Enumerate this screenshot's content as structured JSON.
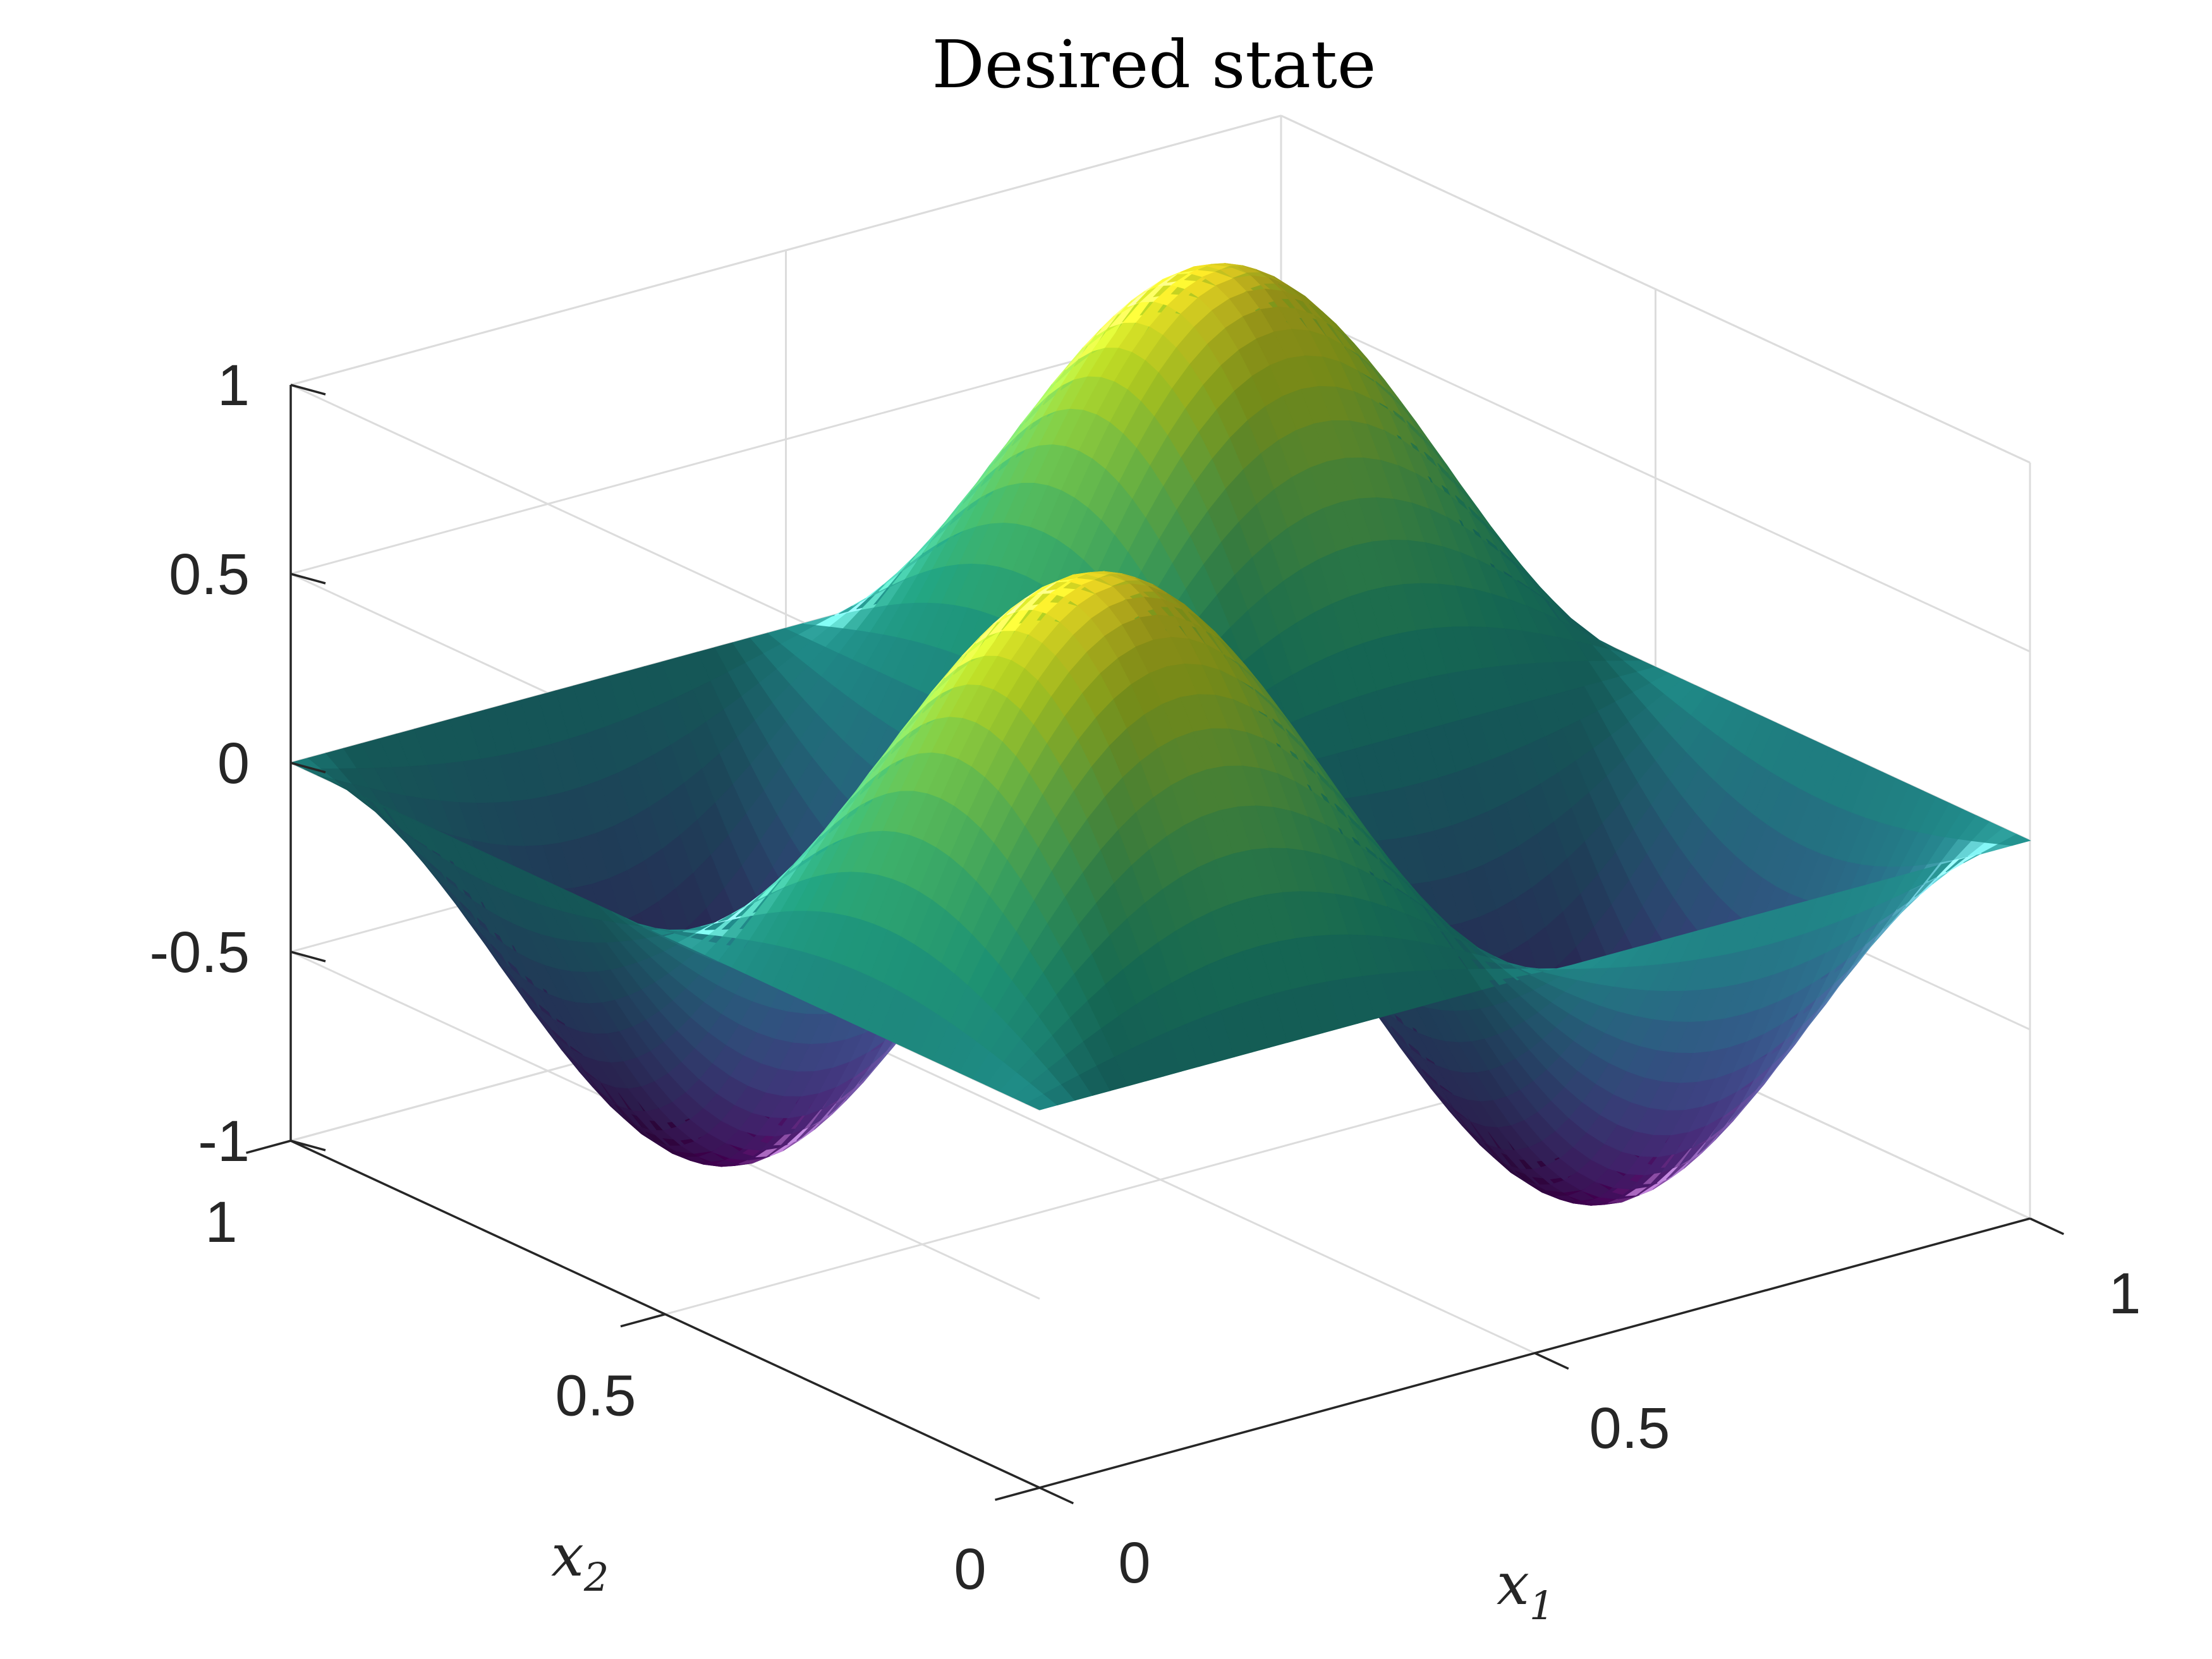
{
  "chart_data": {
    "type": "surface",
    "title": "Desired state",
    "xlabel": "x",
    "xlabel_sub": "1",
    "ylabel": "x",
    "ylabel_sub": "2",
    "zlabel": "",
    "xlim": [
      0,
      1
    ],
    "ylim": [
      0,
      1
    ],
    "zlim": [
      -1,
      1
    ],
    "x_ticks": [
      "0",
      "0.5",
      "1"
    ],
    "y_ticks": [
      "0",
      "0.5",
      "1"
    ],
    "z_ticks": [
      "-1",
      "-0.5",
      "0",
      "0.5",
      "1"
    ],
    "grid": true,
    "colormap": "viridis",
    "function": "sin(2*pi*x1) * sin(2*pi*x2)",
    "peak_value": 1,
    "trough_value": -1
  }
}
